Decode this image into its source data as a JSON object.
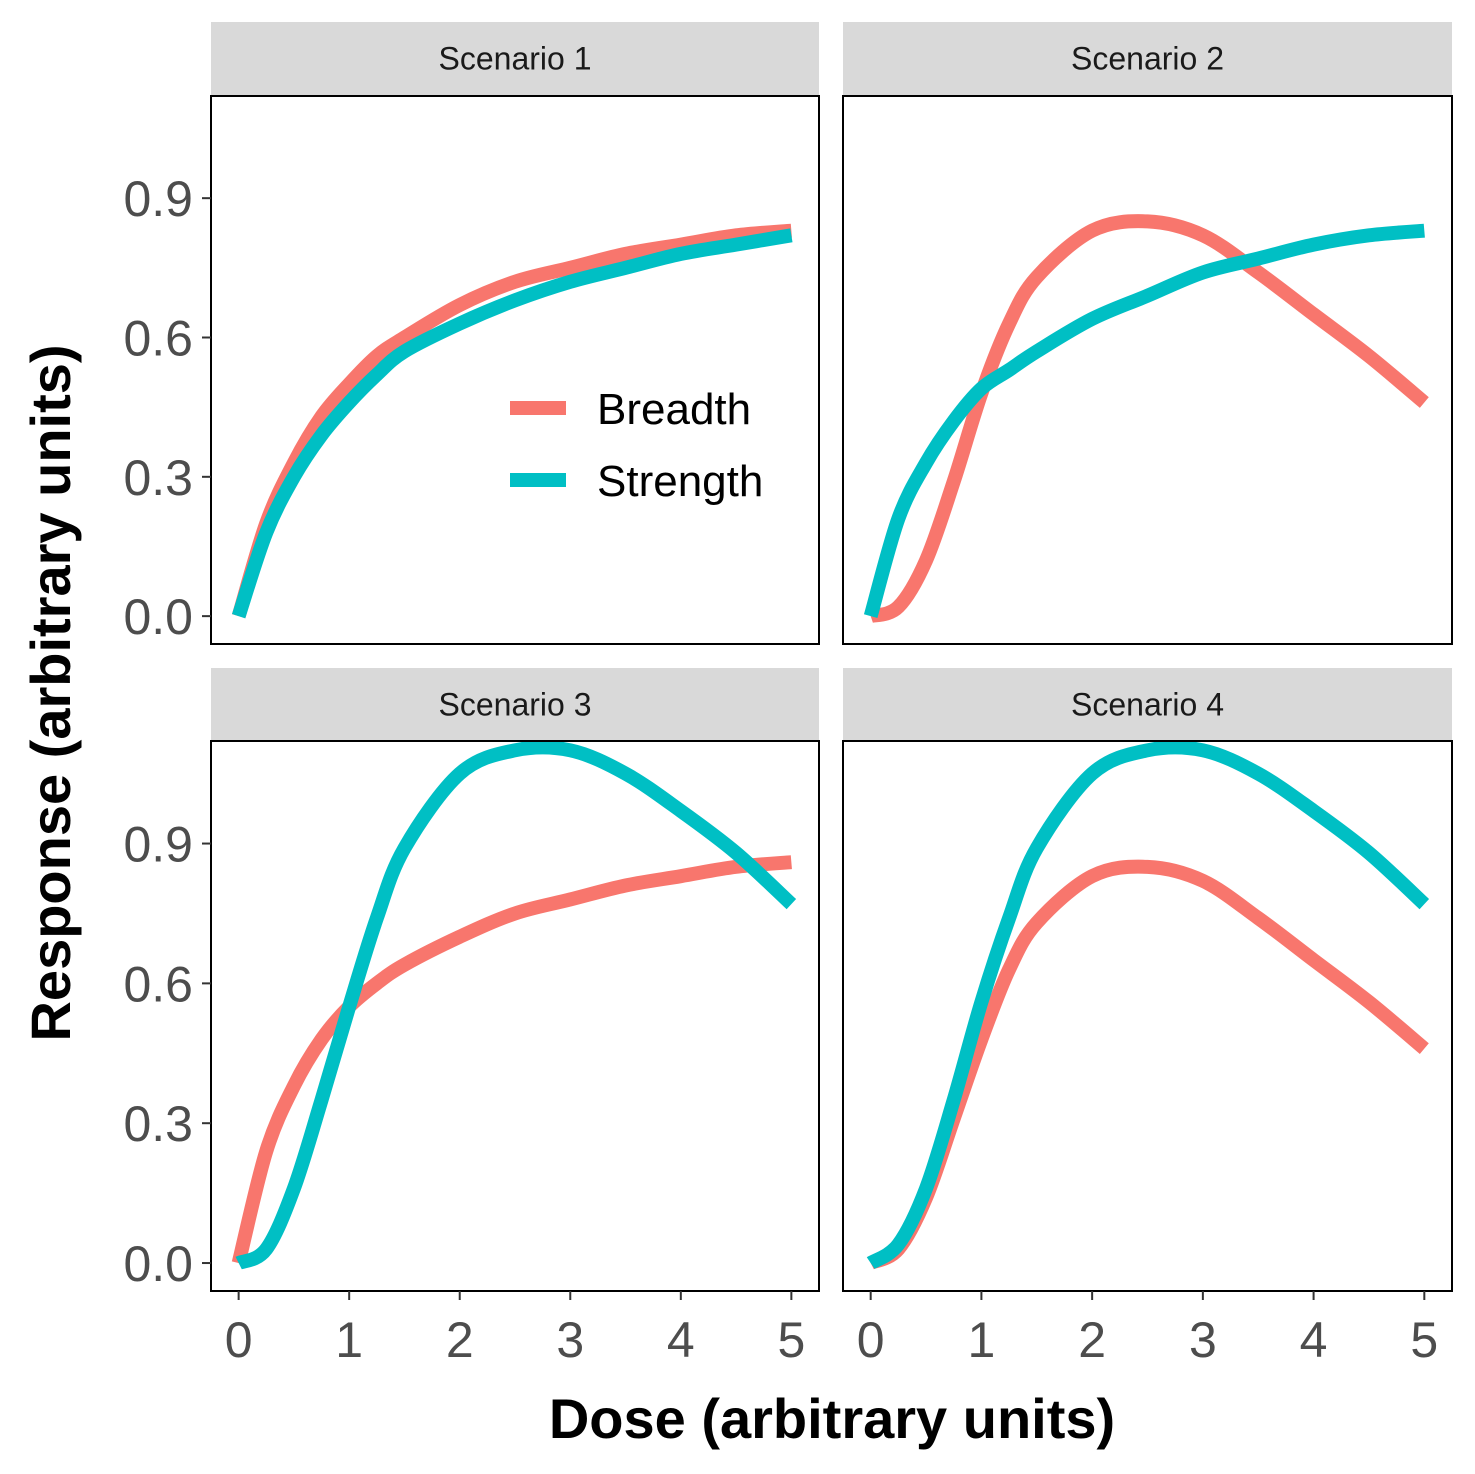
{
  "chart_data": {
    "type": "line",
    "xlabel": "Dose (arbitrary units)",
    "ylabel": "Response (arbitrary units)",
    "xlim": [
      -0.25,
      5.25
    ],
    "ylim": [
      -0.06,
      1.12
    ],
    "x_ticks": [
      "0",
      "1",
      "2",
      "3",
      "4",
      "5"
    ],
    "y_ticks": [
      "0.0",
      "0.3",
      "0.6",
      "0.9"
    ],
    "grid": false,
    "legend": {
      "placement": "inside-top-left-panel",
      "entries": [
        {
          "name": "Breadth",
          "color": "#f8766d"
        },
        {
          "name": "Strength",
          "color": "#00bfc4"
        }
      ]
    },
    "x": [
      0.0,
      0.25,
      0.5,
      0.75,
      1.0,
      1.25,
      1.5,
      2.0,
      2.5,
      3.0,
      3.5,
      4.0,
      4.5,
      5.0
    ],
    "panels": [
      {
        "title": "Scenario 1",
        "series": [
          {
            "name": "Breadth",
            "values": [
              0.0,
              0.2,
              0.33,
              0.43,
              0.5,
              0.56,
              0.6,
              0.67,
              0.72,
              0.75,
              0.78,
              0.8,
              0.82,
              0.83
            ]
          },
          {
            "name": "Strength",
            "values": [
              0.0,
              0.18,
              0.3,
              0.39,
              0.46,
              0.52,
              0.57,
              0.63,
              0.68,
              0.72,
              0.75,
              0.78,
              0.8,
              0.82
            ]
          }
        ]
      },
      {
        "title": "Scenario 2",
        "series": [
          {
            "name": "Breadth",
            "values": [
              0.0,
              0.02,
              0.12,
              0.29,
              0.48,
              0.63,
              0.73,
              0.83,
              0.85,
              0.82,
              0.74,
              0.65,
              0.56,
              0.46
            ]
          },
          {
            "name": "Strength",
            "values": [
              0.0,
              0.21,
              0.33,
              0.42,
              0.49,
              0.53,
              0.57,
              0.64,
              0.69,
              0.74,
              0.77,
              0.8,
              0.82,
              0.83
            ]
          }
        ]
      },
      {
        "title": "Scenario 3",
        "series": [
          {
            "name": "Breadth",
            "values": [
              0.0,
              0.24,
              0.38,
              0.48,
              0.55,
              0.6,
              0.64,
              0.7,
              0.75,
              0.78,
              0.81,
              0.83,
              0.85,
              0.86
            ]
          },
          {
            "name": "Strength",
            "values": [
              0.0,
              0.03,
              0.16,
              0.35,
              0.55,
              0.74,
              0.89,
              1.05,
              1.1,
              1.1,
              1.05,
              0.97,
              0.88,
              0.77
            ]
          }
        ]
      },
      {
        "title": "Scenario 4",
        "series": [
          {
            "name": "Breadth",
            "values": [
              0.0,
              0.03,
              0.14,
              0.31,
              0.48,
              0.63,
              0.73,
              0.83,
              0.85,
              0.82,
              0.74,
              0.65,
              0.56,
              0.46
            ]
          },
          {
            "name": "Strength",
            "values": [
              0.0,
              0.04,
              0.16,
              0.35,
              0.56,
              0.74,
              0.89,
              1.05,
              1.1,
              1.1,
              1.05,
              0.97,
              0.88,
              0.77
            ]
          }
        ]
      }
    ]
  }
}
